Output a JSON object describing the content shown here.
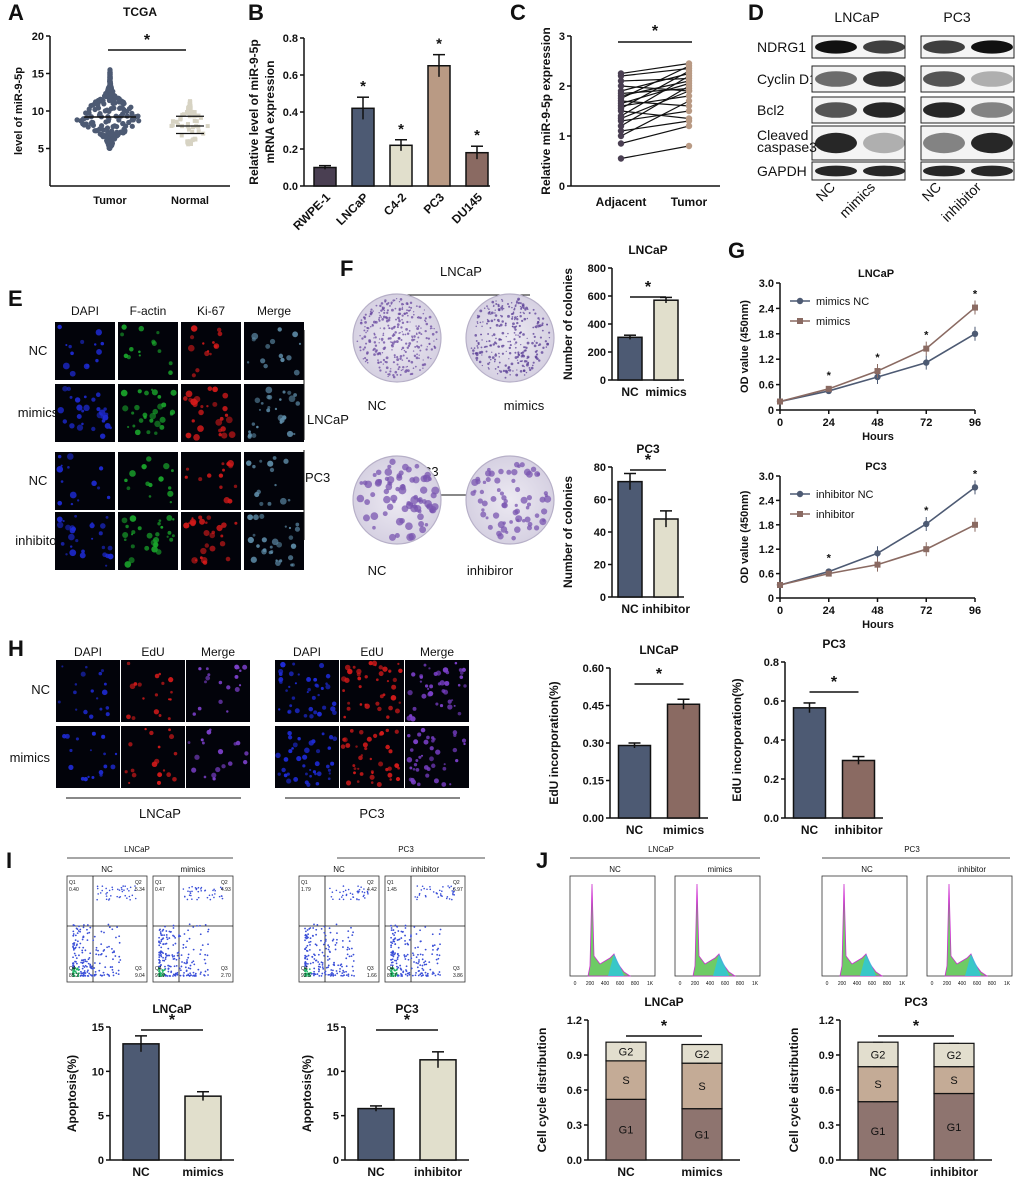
{
  "panels": {
    "A": {
      "letter": "A",
      "title": "TCGA",
      "ylabel": "level of miR-9-5p",
      "yticks": [
        "5",
        "10",
        "15",
        "20"
      ],
      "categories": [
        "Tumor",
        "Normal"
      ],
      "sig": "*"
    },
    "B": {
      "letter": "B",
      "ylabel": "Relative level of miR-9-5p",
      "ylabel2": "mRNA expression",
      "yticks": [
        "0.0",
        "0.2",
        "0.4",
        "0.6",
        "0.8"
      ],
      "categories": [
        "RWPE-1",
        "LNCaP",
        "C4-2",
        "PC3",
        "DU145"
      ],
      "sig": "*"
    },
    "C": {
      "letter": "C",
      "ylabel": "Relative miR-9-5p expression",
      "yticks": [
        "0",
        "1",
        "2",
        "3"
      ],
      "categories": [
        "Adjacent",
        "Tumor"
      ],
      "sig": "*"
    },
    "D": {
      "letter": "D",
      "cell_lines": [
        "LNCaP",
        "PC3"
      ],
      "proteins": [
        "NDRG1",
        "Cyclin D1",
        "Bcl2",
        "Cleaved",
        "caspase3",
        "GAPDH"
      ],
      "lanes": [
        "NC",
        "mimics",
        "NC",
        "inhibitor"
      ]
    },
    "E": {
      "letter": "E",
      "columns": [
        "DAPI",
        "F-actin",
        "Ki-67",
        "Merge"
      ],
      "rows": [
        "NC",
        "mimics",
        "NC",
        "inhibitor"
      ],
      "groups": [
        "LNCaP",
        "PC3"
      ]
    },
    "F": {
      "letter": "F",
      "lncap": "LNCaP",
      "pc3": "PC3",
      "plates": [
        "NC",
        "mimics",
        "NC",
        "inhibiror"
      ],
      "chart1_title": "LNCaP",
      "chart2_title": "PC3",
      "ylabel": "Number of colonies",
      "yticks1": [
        "0",
        "200",
        "400",
        "600",
        "800"
      ],
      "yticks2": [
        "0",
        "20",
        "40",
        "60",
        "80"
      ],
      "cats1": [
        "NC",
        "mimics"
      ],
      "cats2": [
        "NC",
        "inhibitor"
      ],
      "sig": "*"
    },
    "G": {
      "letter": "G",
      "title1": "LNCaP",
      "title2": "PC3",
      "ylabel": "OD value (450nm)",
      "xlabel": "Hours",
      "yticks": [
        "0",
        "0.6",
        "1.2",
        "1.8",
        "2.4",
        "3.0"
      ],
      "xticks": [
        "0",
        "24",
        "48",
        "72",
        "96"
      ],
      "legend1": [
        "mimics NC",
        "mimics"
      ],
      "legend2": [
        "inhibitor NC",
        "inhibitor"
      ],
      "sig": "*"
    },
    "H": {
      "letter": "H",
      "columns": [
        "DAPI",
        "EdU",
        "Merge"
      ],
      "rows": [
        "NC",
        "mimics"
      ],
      "groups": [
        "LNCaP",
        "PC3"
      ],
      "chart1_title": "LNCaP",
      "chart2_title": "PC3",
      "ylabel": "EdU incorporation(%)",
      "yticks1": [
        "0.00",
        "0.15",
        "0.30",
        "0.45",
        "0.60"
      ],
      "yticks2": [
        "0.0",
        "0.2",
        "0.4",
        "0.6",
        "0.8"
      ],
      "cats1": [
        "NC",
        "mimics"
      ],
      "cats2": [
        "NC",
        "inhibitor"
      ],
      "sig": "*"
    },
    "I": {
      "letter": "I",
      "group1": "LNCaP",
      "group2": "PC3",
      "plots": [
        "NC",
        "mimics",
        "NC",
        "inhibitor"
      ],
      "quadrants": [
        [
          "Q1",
          "0.40",
          "Q2",
          "5.34",
          "Q4",
          "85.2",
          "Q3",
          "9.04"
        ],
        [
          "Q1",
          "0.47",
          "Q2",
          "4.93",
          "Q4",
          "91.9",
          "Q3",
          "2.70"
        ],
        [
          "Q1",
          "1.79",
          "Q2",
          "4.42",
          "Q4",
          "92.5",
          "Q3",
          "1.66"
        ],
        [
          "Q1",
          "1.45",
          "Q2",
          "6.97",
          "Q4",
          "87.7",
          "Q3",
          "3.86"
        ]
      ],
      "chart1_title": "LNCaP",
      "chart2_title": "PC3",
      "ylabel": "Apoptosis(%)",
      "yticks1": [
        "0",
        "5",
        "10",
        "15"
      ],
      "yticks2": [
        "0",
        "5",
        "10",
        "15"
      ],
      "cats1": [
        "NC",
        "mimics"
      ],
      "cats2": [
        "NC",
        "inhibitor"
      ],
      "sig": "*"
    },
    "J": {
      "letter": "J",
      "group1": "LNCaP",
      "group2": "PC3",
      "plots": [
        "NC",
        "mimics",
        "NC",
        "inhibitor"
      ],
      "xticks": [
        "0",
        "200",
        "400",
        "600",
        "800",
        "1K"
      ],
      "chart1_title": "LNCaP",
      "chart2_title": "PC3",
      "ylabel": "Cell cycle distribution",
      "yticks": [
        "0.0",
        "0.3",
        "0.6",
        "0.9",
        "1.2"
      ],
      "cats1": [
        "NC",
        "mimics"
      ],
      "cats2": [
        "NC",
        "inhibitor"
      ],
      "phases": [
        "G2",
        "S",
        "G1"
      ],
      "sig": "*"
    }
  },
  "colors": {
    "dark": "#4d5a73",
    "tan": "#b99a84",
    "cream": "#e1dfcc",
    "brown": "#8a6a62",
    "purple": "#4a3f52",
    "g1": "#8e746f",
    "s": "#c4ab96",
    "g2": "#e2dece"
  },
  "chart_data": [
    {
      "type": "scatter",
      "panel": "A",
      "title": "TCGA",
      "ylabel": "level of miR-9-5p",
      "categories": [
        "Tumor",
        "Normal"
      ],
      "ylim": [
        0,
        20
      ],
      "series": [
        {
          "name": "Tumor",
          "mean": 9.2,
          "range": [
            5,
            15.5
          ]
        },
        {
          "name": "Normal",
          "mean": 8.0,
          "range": [
            5.5,
            11.5
          ]
        }
      ]
    },
    {
      "type": "bar",
      "panel": "B",
      "ylabel": "Relative level of miR-9-5p mRNA expression",
      "categories": [
        "RWPE-1",
        "LNCaP",
        "C4-2",
        "PC3",
        "DU145"
      ],
      "values": [
        0.1,
        0.42,
        0.22,
        0.65,
        0.18
      ],
      "errors": [
        0.01,
        0.06,
        0.03,
        0.06,
        0.035
      ],
      "ylim": [
        0,
        0.8
      ]
    },
    {
      "type": "line",
      "panel": "C",
      "ylabel": "Relative miR-9-5p expression",
      "categories": [
        "Adjacent",
        "Tumor"
      ],
      "ylim": [
        0,
        3
      ],
      "pairs": [
        [
          0.55,
          0.8
        ],
        [
          0.85,
          1.2
        ],
        [
          1.0,
          1.7
        ],
        [
          1.1,
          1.3
        ],
        [
          1.2,
          2.0
        ],
        [
          1.3,
          1.5
        ],
        [
          1.35,
          1.9
        ],
        [
          1.4,
          2.2
        ],
        [
          1.5,
          1.35
        ],
        [
          1.55,
          2.3
        ],
        [
          1.6,
          1.8
        ],
        [
          1.65,
          2.05
        ],
        [
          1.7,
          1.6
        ],
        [
          1.75,
          2.4
        ],
        [
          1.8,
          2.1
        ],
        [
          1.85,
          1.95
        ],
        [
          1.9,
          2.25
        ],
        [
          2.0,
          1.9
        ],
        [
          2.1,
          2.15
        ],
        [
          2.2,
          2.35
        ],
        [
          2.25,
          2.45
        ]
      ]
    },
    {
      "type": "bar",
      "panel": "F-LNCaP",
      "ylabel": "Number of colonies",
      "categories": [
        "NC",
        "mimics"
      ],
      "values": [
        305,
        570
      ],
      "errors": [
        15,
        20
      ],
      "ylim": [
        0,
        800
      ]
    },
    {
      "type": "bar",
      "panel": "F-PC3",
      "ylabel": "Number of colonies",
      "categories": [
        "NC",
        "inhibitor"
      ],
      "values": [
        71,
        48
      ],
      "errors": [
        5,
        5
      ],
      "ylim": [
        0,
        80
      ]
    },
    {
      "type": "line",
      "panel": "G-LNCaP",
      "xlabel": "Hours",
      "ylabel": "OD value (450nm)",
      "x": [
        0,
        24,
        48,
        72,
        96
      ],
      "ylim": [
        0,
        3
      ],
      "series": [
        {
          "name": "mimics NC",
          "values": [
            0.2,
            0.45,
            0.78,
            1.12,
            1.8
          ]
        },
        {
          "name": "mimics",
          "values": [
            0.2,
            0.5,
            0.92,
            1.45,
            2.42
          ]
        }
      ]
    },
    {
      "type": "line",
      "panel": "G-PC3",
      "xlabel": "Hours",
      "ylabel": "OD value (450nm)",
      "x": [
        0,
        24,
        48,
        72,
        96
      ],
      "ylim": [
        0,
        3
      ],
      "series": [
        {
          "name": "inhibitor NC",
          "values": [
            0.32,
            0.65,
            1.1,
            1.82,
            2.72
          ]
        },
        {
          "name": "inhibitor",
          "values": [
            0.32,
            0.6,
            0.82,
            1.2,
            1.8
          ]
        }
      ]
    },
    {
      "type": "bar",
      "panel": "H-LNCaP",
      "ylabel": "EdU incorporation(%)",
      "categories": [
        "NC",
        "mimics"
      ],
      "values": [
        0.29,
        0.455
      ],
      "errors": [
        0.01,
        0.02
      ],
      "ylim": [
        0,
        0.6
      ]
    },
    {
      "type": "bar",
      "panel": "H-PC3",
      "ylabel": "EdU incorporation(%)",
      "categories": [
        "NC",
        "inhibitor"
      ],
      "values": [
        0.565,
        0.295
      ],
      "errors": [
        0.025,
        0.02
      ],
      "ylim": [
        0,
        0.8
      ]
    },
    {
      "type": "bar",
      "panel": "I-LNCaP",
      "ylabel": "Apoptosis(%)",
      "categories": [
        "NC",
        "mimics"
      ],
      "values": [
        13.1,
        7.2
      ],
      "errors": [
        0.9,
        0.5
      ],
      "ylim": [
        0,
        15
      ]
    },
    {
      "type": "bar",
      "panel": "I-PC3",
      "ylabel": "Apoptosis(%)",
      "categories": [
        "NC",
        "inhibitor"
      ],
      "values": [
        5.8,
        11.3
      ],
      "errors": [
        0.3,
        0.9
      ],
      "ylim": [
        0,
        15
      ]
    },
    {
      "type": "bar",
      "panel": "J-LNCaP",
      "ylabel": "Cell cycle distribution",
      "categories": [
        "NC",
        "mimics"
      ],
      "ylim": [
        0,
        1.2
      ],
      "series": [
        {
          "name": "G1",
          "values": [
            0.52,
            0.44
          ]
        },
        {
          "name": "S",
          "values": [
            0.33,
            0.39
          ]
        },
        {
          "name": "G2",
          "values": [
            0.16,
            0.16
          ]
        }
      ]
    },
    {
      "type": "bar",
      "panel": "J-PC3",
      "ylabel": "Cell cycle distribution",
      "categories": [
        "NC",
        "inhibitor"
      ],
      "ylim": [
        0,
        1.2
      ],
      "series": [
        {
          "name": "G1",
          "values": [
            0.5,
            0.57
          ]
        },
        {
          "name": "S",
          "values": [
            0.3,
            0.23
          ]
        },
        {
          "name": "G2",
          "values": [
            0.21,
            0.2
          ]
        }
      ]
    }
  ]
}
